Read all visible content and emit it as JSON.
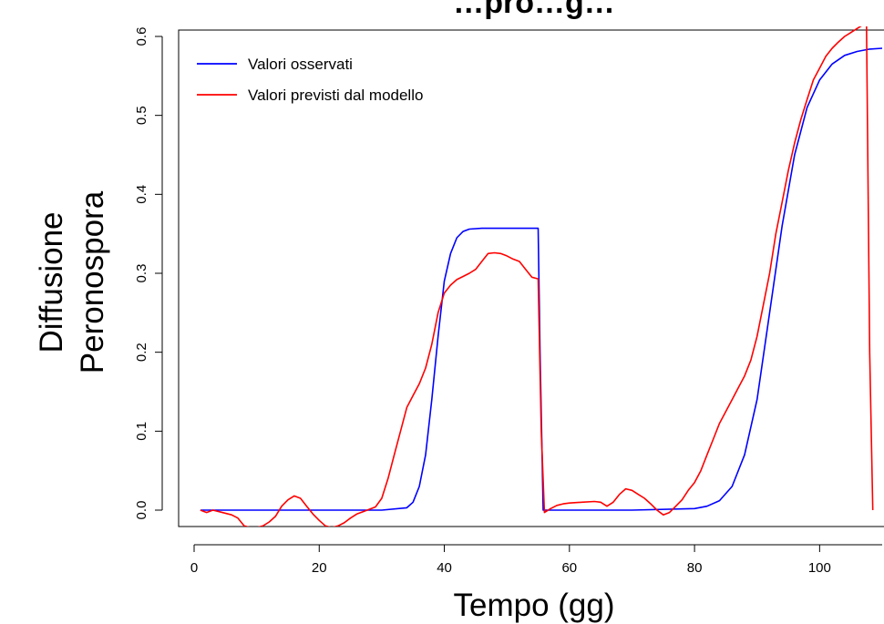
{
  "chart_data": {
    "type": "line",
    "title": "…pro…g…",
    "xlabel": "Tempo (gg)",
    "ylabel_lines": [
      "Diffusione",
      "Peronospora"
    ],
    "xlim": [
      0,
      110
    ],
    "ylim": [
      -0.02,
      0.61
    ],
    "xticks": [
      0,
      20,
      40,
      60,
      80,
      100
    ],
    "yticks": [
      0.0,
      0.1,
      0.2,
      0.3,
      0.4,
      0.5,
      0.6
    ],
    "xtick_labels": [
      "0",
      "20",
      "40",
      "60",
      "80",
      "100"
    ],
    "ytick_labels": [
      "0.0",
      "0.1",
      "0.2",
      "0.3",
      "0.4",
      "0.5",
      "0.6"
    ],
    "legend_position": "top-left",
    "grid": false,
    "series": [
      {
        "name": "Valori osservati",
        "color": "#0000ff",
        "points": [
          [
            1,
            0
          ],
          [
            10,
            0
          ],
          [
            20,
            0
          ],
          [
            30,
            0
          ],
          [
            34,
            0.003
          ],
          [
            35,
            0.01
          ],
          [
            36,
            0.03
          ],
          [
            37,
            0.07
          ],
          [
            38,
            0.14
          ],
          [
            39,
            0.22
          ],
          [
            40,
            0.29
          ],
          [
            41,
            0.325
          ],
          [
            42,
            0.345
          ],
          [
            43,
            0.353
          ],
          [
            44,
            0.356
          ],
          [
            46,
            0.357
          ],
          [
            50,
            0.357
          ],
          [
            55,
            0.357
          ],
          [
            55.3,
            0.2
          ],
          [
            55.8,
            0.0
          ],
          [
            60,
            0
          ],
          [
            70,
            0
          ],
          [
            80,
            0.002
          ],
          [
            82,
            0.005
          ],
          [
            84,
            0.012
          ],
          [
            86,
            0.03
          ],
          [
            88,
            0.07
          ],
          [
            90,
            0.14
          ],
          [
            92,
            0.25
          ],
          [
            94,
            0.36
          ],
          [
            96,
            0.45
          ],
          [
            98,
            0.51
          ],
          [
            100,
            0.545
          ],
          [
            102,
            0.565
          ],
          [
            104,
            0.576
          ],
          [
            106,
            0.581
          ],
          [
            108,
            0.584
          ],
          [
            110,
            0.585
          ]
        ]
      },
      {
        "name": "Valori previsti dal modello",
        "color": "#ff0000",
        "points": [
          [
            1,
            0
          ],
          [
            2,
            -0.003
          ],
          [
            3,
            0
          ],
          [
            4,
            -0.002
          ],
          [
            6,
            -0.006
          ],
          [
            7,
            -0.01
          ],
          [
            8,
            -0.02
          ],
          [
            9,
            -0.022
          ],
          [
            10,
            -0.022
          ],
          [
            11,
            -0.02
          ],
          [
            12,
            -0.015
          ],
          [
            13,
            -0.008
          ],
          [
            14,
            0.005
          ],
          [
            15,
            0.013
          ],
          [
            16,
            0.018
          ],
          [
            17,
            0.015
          ],
          [
            18,
            0.005
          ],
          [
            19,
            -0.005
          ],
          [
            20,
            -0.013
          ],
          [
            21,
            -0.02
          ],
          [
            22,
            -0.022
          ],
          [
            23,
            -0.02
          ],
          [
            24,
            -0.016
          ],
          [
            25,
            -0.01
          ],
          [
            26,
            -0.005
          ],
          [
            27,
            -0.002
          ],
          [
            28,
            0.001
          ],
          [
            29,
            0.004
          ],
          [
            30,
            0.015
          ],
          [
            31,
            0.04
          ],
          [
            32,
            0.07
          ],
          [
            33,
            0.1
          ],
          [
            34,
            0.13
          ],
          [
            35,
            0.145
          ],
          [
            36,
            0.16
          ],
          [
            37,
            0.18
          ],
          [
            38,
            0.21
          ],
          [
            39,
            0.25
          ],
          [
            40,
            0.275
          ],
          [
            41,
            0.285
          ],
          [
            42,
            0.292
          ],
          [
            43,
            0.296
          ],
          [
            44,
            0.3
          ],
          [
            45,
            0.305
          ],
          [
            46,
            0.315
          ],
          [
            47,
            0.325
          ],
          [
            48,
            0.326
          ],
          [
            49,
            0.325
          ],
          [
            50,
            0.322
          ],
          [
            51,
            0.318
          ],
          [
            52,
            0.315
          ],
          [
            53,
            0.305
          ],
          [
            54,
            0.295
          ],
          [
            55,
            0.293
          ],
          [
            55.5,
            0.1
          ],
          [
            56,
            -0.003
          ],
          [
            57,
            0.002
          ],
          [
            58,
            0.006
          ],
          [
            59,
            0.008
          ],
          [
            60,
            0.009
          ],
          [
            62,
            0.01
          ],
          [
            64,
            0.011
          ],
          [
            65,
            0.01
          ],
          [
            66,
            0.005
          ],
          [
            67,
            0.01
          ],
          [
            68,
            0.02
          ],
          [
            69,
            0.027
          ],
          [
            70,
            0.025
          ],
          [
            71,
            0.02
          ],
          [
            72,
            0.015
          ],
          [
            73,
            0.008
          ],
          [
            74,
            0.0
          ],
          [
            75,
            -0.006
          ],
          [
            76,
            -0.003
          ],
          [
            77,
            0.005
          ],
          [
            78,
            0.013
          ],
          [
            79,
            0.025
          ],
          [
            80,
            0.035
          ],
          [
            81,
            0.05
          ],
          [
            82,
            0.07
          ],
          [
            83,
            0.09
          ],
          [
            84,
            0.11
          ],
          [
            85,
            0.125
          ],
          [
            86,
            0.14
          ],
          [
            87,
            0.155
          ],
          [
            88,
            0.17
          ],
          [
            89,
            0.19
          ],
          [
            90,
            0.22
          ],
          [
            91,
            0.26
          ],
          [
            92,
            0.3
          ],
          [
            93,
            0.35
          ],
          [
            94,
            0.39
          ],
          [
            95,
            0.43
          ],
          [
            96,
            0.465
          ],
          [
            97,
            0.495
          ],
          [
            98,
            0.52
          ],
          [
            99,
            0.545
          ],
          [
            100,
            0.56
          ],
          [
            101,
            0.575
          ],
          [
            102,
            0.585
          ],
          [
            103,
            0.593
          ],
          [
            104,
            0.6
          ],
          [
            105,
            0.605
          ],
          [
            106,
            0.61
          ],
          [
            107,
            0.615
          ],
          [
            107.5,
            0.615
          ],
          [
            108,
            0.2
          ],
          [
            108.5,
            0.0
          ]
        ]
      }
    ]
  }
}
